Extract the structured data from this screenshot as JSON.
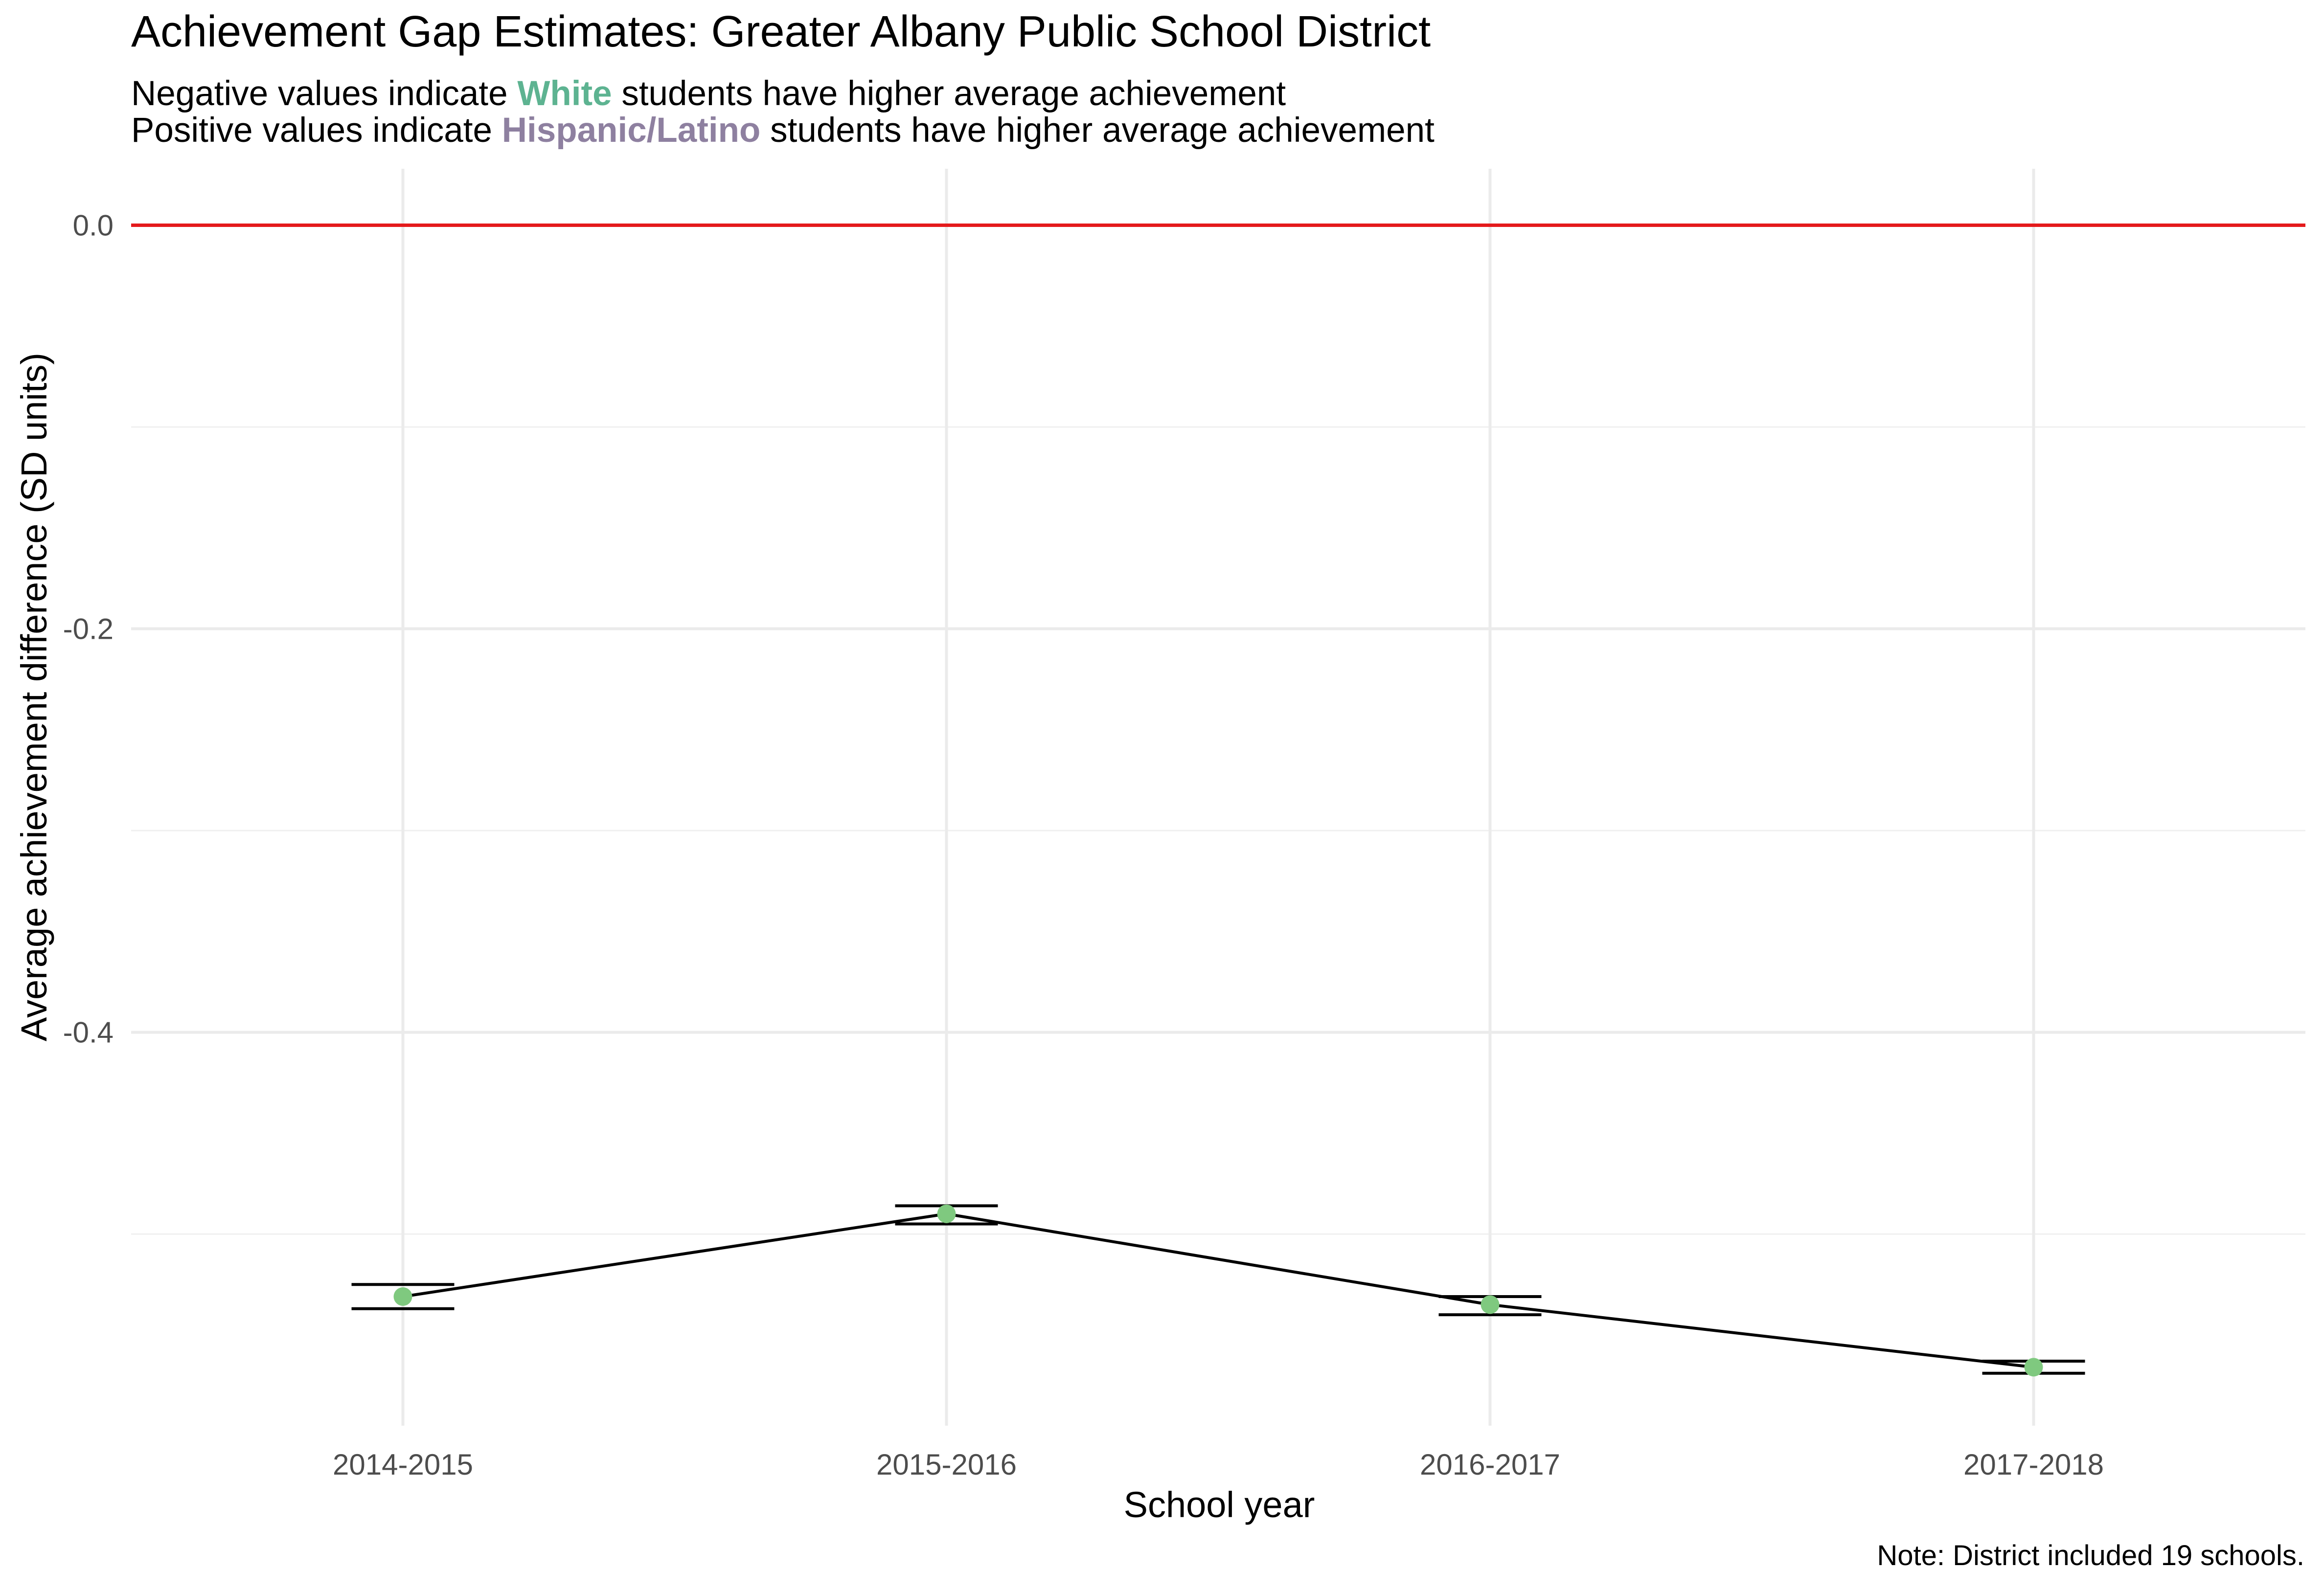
{
  "chart_data": {
    "type": "line",
    "title": "Achievement Gap Estimates: Greater Albany Public School District",
    "subtitle": [
      {
        "before": "Negative values indicate ",
        "highlight": "White",
        "highlight_color": "#5DB391",
        "after": " students have higher average achievement"
      },
      {
        "before": "Positive values indicate ",
        "highlight": "Hispanic/Latino",
        "highlight_color": "#8E80A0",
        "after": " students have higher average achievement"
      }
    ],
    "xlabel": "School year",
    "ylabel": "Average achievement difference (SD units)",
    "categories": [
      "2014-2015",
      "2015-2016",
      "2016-2017",
      "2017-2018"
    ],
    "values": [
      -0.531,
      -0.49,
      -0.535,
      -0.566
    ],
    "error_bars": [
      {
        "low": -0.537,
        "high": -0.525
      },
      {
        "low": -0.495,
        "high": -0.486
      },
      {
        "low": -0.54,
        "high": -0.531
      },
      {
        "low": -0.569,
        "high": -0.563
      }
    ],
    "ylim": [
      -0.595,
      0.028
    ],
    "y_ticks": [
      {
        "value": 0.0,
        "label": "0.0"
      },
      {
        "value": -0.2,
        "label": "-0.2"
      },
      {
        "value": -0.4,
        "label": "-0.4"
      }
    ],
    "y_minor_grid": [
      -0.1,
      -0.3,
      -0.5
    ],
    "reference_line": {
      "value": 0,
      "color": "#E41A1C"
    },
    "point_color": "#7FC97F",
    "line_color": "#000000",
    "grid": true,
    "caption": "Note: District included 19 schools."
  }
}
